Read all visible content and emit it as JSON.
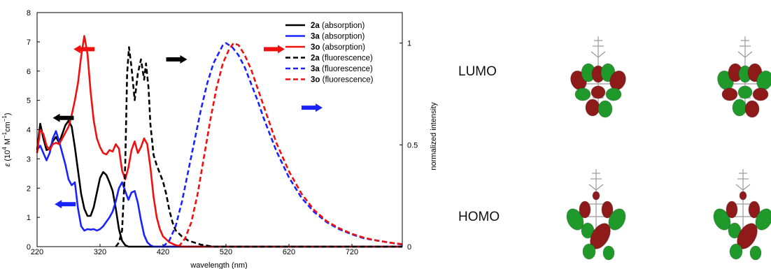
{
  "chart_data": {
    "type": "line",
    "xlabel": "wavelength (nm)",
    "ylabel_left": "ε (10⁴ M⁻¹cm⁻¹)",
    "ylabel_left_parts": {
      "symbol": "ε",
      "open": " (10",
      "exp1": "4",
      "mid": " M",
      "exp2": "−1",
      "mid2": "cm",
      "exp3": "−1",
      "close": ")"
    },
    "ylabel_right": "normalized intensity",
    "xlim": [
      220,
      800
    ],
    "ylim_left": [
      0,
      8
    ],
    "ylim_right": [
      0,
      1.15
    ],
    "xticks": [
      "220",
      "320",
      "420",
      "520",
      "620",
      "720"
    ],
    "xtick_values": [
      220,
      320,
      420,
      520,
      620,
      720
    ],
    "yticks_left": [
      "0",
      "1",
      "2",
      "3",
      "4",
      "5",
      "6",
      "7",
      "8"
    ],
    "yticks_right": [
      "0",
      "0.5",
      "1"
    ],
    "ytick_right_values": [
      0,
      0.5,
      1
    ],
    "legend_placement": "top-right",
    "series": [
      {
        "id": "2a-abs",
        "compound": "2a",
        "kind": " (absorption)",
        "axis": "left",
        "color": "#000000",
        "dash": "solid",
        "points": [
          [
            220,
            3.3
          ],
          [
            225,
            4.2
          ],
          [
            230,
            3.7
          ],
          [
            235,
            3.3
          ],
          [
            240,
            3.35
          ],
          [
            245,
            3.6
          ],
          [
            250,
            3.75
          ],
          [
            255,
            3.55
          ],
          [
            260,
            3.85
          ],
          [
            265,
            4.15
          ],
          [
            270,
            4.3
          ],
          [
            275,
            4.1
          ],
          [
            280,
            3.4
          ],
          [
            285,
            2.6
          ],
          [
            290,
            1.8
          ],
          [
            295,
            1.3
          ],
          [
            300,
            1.05
          ],
          [
            305,
            1.05
          ],
          [
            310,
            1.35
          ],
          [
            315,
            1.85
          ],
          [
            320,
            2.35
          ],
          [
            325,
            2.55
          ],
          [
            330,
            2.45
          ],
          [
            335,
            2.2
          ],
          [
            340,
            1.9
          ],
          [
            345,
            1.3
          ],
          [
            350,
            0.6
          ],
          [
            355,
            0.2
          ],
          [
            360,
            0.05
          ],
          [
            365,
            0.0
          ],
          [
            380,
            0.0
          ],
          [
            800,
            0.0
          ]
        ]
      },
      {
        "id": "3a-abs",
        "compound": "3a",
        "kind": " (absorption)",
        "axis": "left",
        "color": "#1a23ff",
        "dash": "solid",
        "points": [
          [
            220,
            3.3
          ],
          [
            225,
            3.45
          ],
          [
            230,
            3.2
          ],
          [
            235,
            2.95
          ],
          [
            240,
            3.2
          ],
          [
            245,
            3.7
          ],
          [
            250,
            3.95
          ],
          [
            255,
            3.6
          ],
          [
            260,
            3.2
          ],
          [
            265,
            2.8
          ],
          [
            270,
            2.3
          ],
          [
            275,
            2.1
          ],
          [
            280,
            2.2
          ],
          [
            285,
            1.3
          ],
          [
            290,
            0.7
          ],
          [
            295,
            0.55
          ],
          [
            300,
            0.6
          ],
          [
            305,
            0.58
          ],
          [
            310,
            0.6
          ],
          [
            315,
            0.55
          ],
          [
            320,
            0.6
          ],
          [
            325,
            0.7
          ],
          [
            330,
            0.85
          ],
          [
            335,
            1.0
          ],
          [
            340,
            1.2
          ],
          [
            345,
            1.55
          ],
          [
            350,
            2.0
          ],
          [
            355,
            2.2
          ],
          [
            360,
            1.9
          ],
          [
            365,
            1.6
          ],
          [
            370,
            1.85
          ],
          [
            375,
            1.9
          ],
          [
            380,
            1.5
          ],
          [
            385,
            0.9
          ],
          [
            390,
            0.4
          ],
          [
            395,
            0.15
          ],
          [
            400,
            0.05
          ],
          [
            405,
            0.0
          ],
          [
            800,
            0.0
          ]
        ]
      },
      {
        "id": "3o-abs",
        "compound": "3o",
        "kind": " (absorption)",
        "axis": "left",
        "color": "#f01010",
        "dash": "solid",
        "points": [
          [
            220,
            3.2
          ],
          [
            225,
            4.0
          ],
          [
            230,
            3.85
          ],
          [
            235,
            3.45
          ],
          [
            240,
            3.3
          ],
          [
            245,
            3.5
          ],
          [
            250,
            3.55
          ],
          [
            255,
            3.5
          ],
          [
            260,
            3.7
          ],
          [
            265,
            3.9
          ],
          [
            270,
            4.1
          ],
          [
            275,
            4.5
          ],
          [
            280,
            5.0
          ],
          [
            285,
            5.6
          ],
          [
            290,
            6.5
          ],
          [
            295,
            7.2
          ],
          [
            300,
            6.6
          ],
          [
            305,
            5.3
          ],
          [
            310,
            4.3
          ],
          [
            315,
            3.7
          ],
          [
            320,
            3.4
          ],
          [
            325,
            3.2
          ],
          [
            330,
            3.15
          ],
          [
            335,
            3.3
          ],
          [
            340,
            3.25
          ],
          [
            345,
            3.5
          ],
          [
            350,
            3.35
          ],
          [
            355,
            2.6
          ],
          [
            360,
            2.3
          ],
          [
            365,
            2.7
          ],
          [
            370,
            3.3
          ],
          [
            375,
            3.6
          ],
          [
            380,
            3.2
          ],
          [
            385,
            3.4
          ],
          [
            390,
            3.7
          ],
          [
            395,
            3.5
          ],
          [
            400,
            2.7
          ],
          [
            405,
            1.7
          ],
          [
            410,
            1.0
          ],
          [
            415,
            0.6
          ],
          [
            420,
            0.35
          ],
          [
            430,
            0.15
          ],
          [
            440,
            0.05
          ],
          [
            450,
            0.0
          ],
          [
            800,
            0.0
          ]
        ]
      },
      {
        "id": "2a-fl",
        "compound": "2a",
        "kind": " (fluorescence)",
        "axis": "right",
        "color": "#000000",
        "dash": "dashed",
        "points": [
          [
            345,
            0.0
          ],
          [
            350,
            0.02
          ],
          [
            355,
            0.08
          ],
          [
            360,
            0.4
          ],
          [
            363,
            0.85
          ],
          [
            366,
            0.98
          ],
          [
            370,
            0.88
          ],
          [
            375,
            0.72
          ],
          [
            380,
            0.85
          ],
          [
            385,
            0.92
          ],
          [
            390,
            0.82
          ],
          [
            393,
            0.9
          ],
          [
            397,
            0.78
          ],
          [
            400,
            0.6
          ],
          [
            405,
            0.45
          ],
          [
            410,
            0.4
          ],
          [
            415,
            0.36
          ],
          [
            420,
            0.32
          ],
          [
            425,
            0.26
          ],
          [
            430,
            0.18
          ],
          [
            435,
            0.12
          ],
          [
            440,
            0.08
          ],
          [
            450,
            0.05
          ],
          [
            460,
            0.03
          ],
          [
            470,
            0.02
          ],
          [
            480,
            0.01
          ],
          [
            500,
            0.0
          ],
          [
            800,
            0.0
          ]
        ]
      },
      {
        "id": "3a-fl",
        "compound": "3a",
        "kind": " (fluorescence)",
        "axis": "right",
        "color": "#1a23ff",
        "dash": "dashed",
        "points": [
          [
            420,
            0.0
          ],
          [
            430,
            0.03
          ],
          [
            440,
            0.1
          ],
          [
            450,
            0.22
          ],
          [
            460,
            0.37
          ],
          [
            470,
            0.52
          ],
          [
            480,
            0.67
          ],
          [
            490,
            0.8
          ],
          [
            500,
            0.9
          ],
          [
            510,
            0.96
          ],
          [
            515,
            0.99
          ],
          [
            520,
            1.0
          ],
          [
            530,
            0.98
          ],
          [
            540,
            0.94
          ],
          [
            550,
            0.88
          ],
          [
            560,
            0.8
          ],
          [
            570,
            0.72
          ],
          [
            580,
            0.63
          ],
          [
            590,
            0.55
          ],
          [
            600,
            0.47
          ],
          [
            620,
            0.34
          ],
          [
            640,
            0.24
          ],
          [
            660,
            0.17
          ],
          [
            680,
            0.12
          ],
          [
            700,
            0.085
          ],
          [
            720,
            0.06
          ],
          [
            740,
            0.04
          ],
          [
            760,
            0.03
          ],
          [
            780,
            0.02
          ],
          [
            800,
            0.01
          ]
        ]
      },
      {
        "id": "3o-fl",
        "compound": "3o",
        "kind": " (fluorescence)",
        "axis": "right",
        "color": "#f01010",
        "dash": "dashed",
        "points": [
          [
            445,
            0.0
          ],
          [
            455,
            0.04
          ],
          [
            465,
            0.12
          ],
          [
            475,
            0.26
          ],
          [
            485,
            0.44
          ],
          [
            495,
            0.62
          ],
          [
            505,
            0.78
          ],
          [
            515,
            0.9
          ],
          [
            525,
            0.97
          ],
          [
            532,
            1.0
          ],
          [
            540,
            0.99
          ],
          [
            550,
            0.94
          ],
          [
            560,
            0.87
          ],
          [
            570,
            0.78
          ],
          [
            580,
            0.69
          ],
          [
            590,
            0.6
          ],
          [
            600,
            0.51
          ],
          [
            620,
            0.37
          ],
          [
            640,
            0.26
          ],
          [
            660,
            0.18
          ],
          [
            680,
            0.125
          ],
          [
            700,
            0.09
          ],
          [
            720,
            0.063
          ],
          [
            740,
            0.043
          ],
          [
            760,
            0.03
          ],
          [
            780,
            0.02
          ],
          [
            800,
            0.012
          ]
        ]
      }
    ],
    "arrows": [
      {
        "id": "black-left",
        "color": "#000000",
        "dir": "left",
        "x": 245,
        "y": 4.4
      },
      {
        "id": "red-left",
        "color": "#f01010",
        "dir": "left",
        "x": 278,
        "y": 6.75
      },
      {
        "id": "blue-left",
        "color": "#1a23ff",
        "dir": "left",
        "x": 248,
        "y": 1.45
      },
      {
        "id": "black-right",
        "color": "#000000",
        "dir": "right",
        "x": 425,
        "y": 6.4
      },
      {
        "id": "red-right",
        "color": "#f01010",
        "dir": "right",
        "x": 580,
        "y": 6.75
      },
      {
        "id": "blue-right",
        "color": "#1a23ff",
        "dir": "right",
        "x": 640,
        "y": 4.75
      }
    ]
  },
  "orbitals": {
    "lumo_label": "LUMO",
    "homo_label": "HOMO",
    "positive_color": "#1f9a2a",
    "negative_color": "#8e1a1a"
  }
}
